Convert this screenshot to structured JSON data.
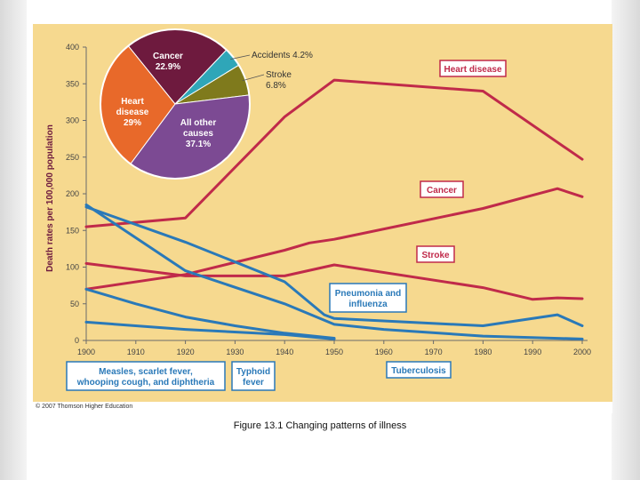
{
  "figure": {
    "caption": "Figure 13.1  Changing patterns of illness",
    "credit": "© 2007 Thomson Higher Education",
    "background_color": "#f6d98f"
  },
  "chart_data": [
    {
      "type": "line",
      "title": "",
      "xlabel": "",
      "ylabel": "Death rates per 100,000 population",
      "x_ticks": [
        "1900",
        "1910",
        "1920",
        "1930",
        "1940",
        "1950",
        "1960",
        "1970",
        "1980",
        "1990",
        "2000"
      ],
      "y_ticks": [
        "0",
        "50",
        "100",
        "150",
        "200",
        "250",
        "300",
        "350",
        "400"
      ],
      "xlim": [
        1900,
        2000
      ],
      "ylim": [
        0,
        400
      ],
      "series": [
        {
          "name": "Heart disease",
          "color": "#c02a4a",
          "label_lines": [
            "Heart disease"
          ],
          "points": [
            [
              1900,
              155
            ],
            [
              1920,
              167
            ],
            [
              1940,
              305
            ],
            [
              1950,
              355
            ],
            [
              1980,
              340
            ],
            [
              2000,
              247
            ]
          ]
        },
        {
          "name": "Cancer",
          "color": "#c02a4a",
          "label_lines": [
            "Cancer"
          ],
          "points": [
            [
              1900,
              70
            ],
            [
              1920,
              90
            ],
            [
              1940,
              123
            ],
            [
              1945,
              133
            ],
            [
              1950,
              138
            ],
            [
              1980,
              180
            ],
            [
              1995,
              207
            ],
            [
              2000,
              196
            ]
          ]
        },
        {
          "name": "Stroke",
          "color": "#c02a4a",
          "label_lines": [
            "Stroke"
          ],
          "points": [
            [
              1900,
              105
            ],
            [
              1920,
              88
            ],
            [
              1940,
              88
            ],
            [
              1950,
              103
            ],
            [
              1980,
              72
            ],
            [
              1990,
              56
            ],
            [
              1995,
              58
            ],
            [
              2000,
              57
            ]
          ]
        },
        {
          "name": "Pneumonia and influenza",
          "color": "#2a79b8",
          "label_lines": [
            "Pneumonia and",
            "influenza"
          ],
          "points": [
            [
              1900,
              182
            ],
            [
              1920,
              134
            ],
            [
              1940,
              80
            ],
            [
              1948,
              35
            ],
            [
              1950,
              30
            ],
            [
              1980,
              20
            ],
            [
              1995,
              35
            ],
            [
              2000,
              20
            ]
          ]
        },
        {
          "name": "Tuberculosis",
          "color": "#2a79b8",
          "label_lines": [
            "Tuberculosis"
          ],
          "points": [
            [
              1900,
              185
            ],
            [
              1920,
              95
            ],
            [
              1940,
              50
            ],
            [
              1950,
              22
            ],
            [
              1960,
              15
            ],
            [
              1980,
              6
            ],
            [
              2000,
              2
            ]
          ]
        },
        {
          "name": "Measles, scarlet fever, whooping cough, and diphtheria",
          "color": "#2a79b8",
          "label_lines": [
            "Measles, scarlet fever,",
            "whooping cough, and diphtheria"
          ],
          "points": [
            [
              1900,
              70
            ],
            [
              1910,
              50
            ],
            [
              1920,
              32
            ],
            [
              1930,
              20
            ],
            [
              1940,
              10
            ],
            [
              1950,
              3
            ]
          ]
        },
        {
          "name": "Typhoid fever",
          "color": "#2a79b8",
          "label_lines": [
            "Typhoid",
            "fever"
          ],
          "points": [
            [
              1900,
              25
            ],
            [
              1920,
              15
            ],
            [
              1940,
              8
            ],
            [
              1950,
              2
            ]
          ]
        }
      ]
    },
    {
      "type": "pie",
      "title": "",
      "slices": [
        {
          "label_lines": [
            "Cancer",
            "22.9%"
          ],
          "value": 22.9,
          "color": "#6e1a3e"
        },
        {
          "label_lines": [
            "Accidents 4.2%"
          ],
          "value": 4.2,
          "color": "#2fa6b8"
        },
        {
          "label_lines": [
            "Stroke",
            "6.8%"
          ],
          "value": 6.8,
          "color": "#7f7a1c"
        },
        {
          "label_lines": [
            "All other",
            "causes",
            "37.1%"
          ],
          "value": 37.1,
          "color": "#7c4a93"
        },
        {
          "label_lines": [
            "Heart",
            "disease",
            "29%"
          ],
          "value": 29.0,
          "color": "#e8692a"
        }
      ]
    }
  ]
}
